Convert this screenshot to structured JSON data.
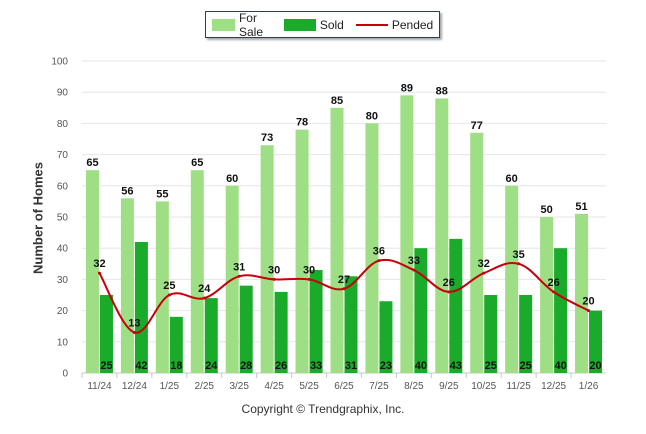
{
  "chart_data": {
    "type": "bar",
    "ylabel": "Number of Homes",
    "ylim": [
      0,
      100
    ],
    "yticks": [
      0,
      10,
      20,
      30,
      40,
      50,
      60,
      70,
      80,
      90,
      100
    ],
    "grid": true,
    "legend_placement": "top-center",
    "categories": [
      "11/24",
      "12/24",
      "1/25",
      "2/25",
      "3/25",
      "4/25",
      "5/25",
      "6/25",
      "7/25",
      "8/25",
      "9/25",
      "10/25",
      "11/25",
      "12/25",
      "1/26"
    ],
    "series": [
      {
        "name": "For Sale",
        "type": "bar",
        "color": "#9ede84",
        "values": [
          65,
          56,
          55,
          65,
          60,
          73,
          78,
          85,
          80,
          89,
          88,
          77,
          60,
          50,
          51
        ]
      },
      {
        "name": "Sold",
        "type": "bar",
        "color": "#1aab2b",
        "values": [
          25,
          42,
          18,
          24,
          28,
          26,
          33,
          31,
          23,
          40,
          43,
          25,
          25,
          40,
          20
        ]
      },
      {
        "name": "Pended",
        "type": "line",
        "color": "#c8000a",
        "values": [
          32,
          13,
          25,
          24,
          31,
          30,
          30,
          27,
          36,
          33,
          26,
          32,
          35,
          26,
          20
        ]
      }
    ]
  },
  "legend": {
    "for_sale": "For Sale",
    "sold": "Sold",
    "pended": "Pended"
  },
  "credit": "Copyright © Trendgraphix, Inc."
}
